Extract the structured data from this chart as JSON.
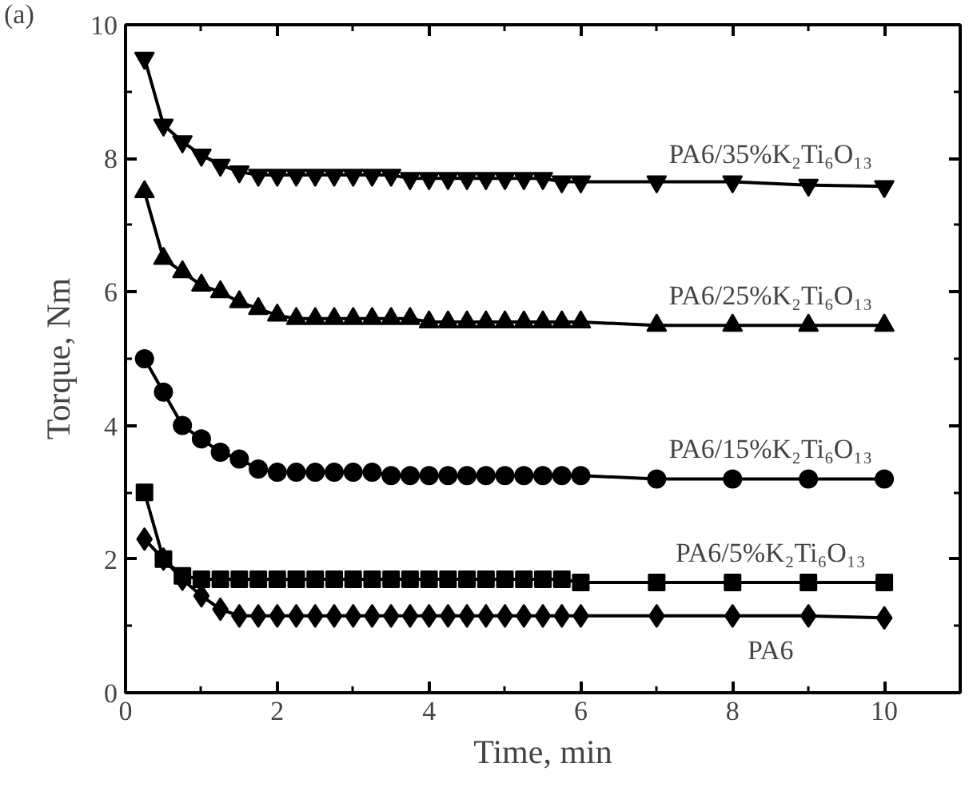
{
  "chart_data": {
    "type": "line",
    "xlabel": "Time, min",
    "ylabel": "Torque, Nm",
    "x": [
      0.25,
      0.5,
      0.75,
      1.0,
      1.25,
      1.5,
      1.75,
      2.0,
      2.25,
      2.5,
      2.75,
      3.0,
      3.25,
      3.5,
      3.75,
      4.0,
      4.25,
      4.5,
      4.75,
      5.0,
      5.25,
      5.5,
      5.75,
      6.0,
      7,
      8,
      9,
      10
    ],
    "series": [
      {
        "name": "PA6/35%K₂Ti₆O₁₃",
        "color": "#000000",
        "marker": "triangle_down",
        "values": [
          9.5,
          8.5,
          8.25,
          8.05,
          7.9,
          7.8,
          7.75,
          7.75,
          7.75,
          7.75,
          7.75,
          7.75,
          7.75,
          7.75,
          7.7,
          7.7,
          7.7,
          7.7,
          7.7,
          7.7,
          7.7,
          7.7,
          7.65,
          7.65,
          7.65,
          7.65,
          7.6,
          7.58
        ]
      },
      {
        "name": "PA6/25%K₂Ti₆O₁₃",
        "color": "#000000",
        "marker": "triangle",
        "values": [
          7.5,
          6.5,
          6.3,
          6.1,
          6.0,
          5.85,
          5.75,
          5.65,
          5.6,
          5.6,
          5.6,
          5.6,
          5.6,
          5.6,
          5.6,
          5.55,
          5.55,
          5.55,
          5.55,
          5.55,
          5.55,
          5.55,
          5.55,
          5.55,
          5.5,
          5.5,
          5.5,
          5.5
        ]
      },
      {
        "name": "PA6/15%K₂Ti₆O₁₃",
        "color": "#000000",
        "marker": "circle",
        "values": [
          5.0,
          4.5,
          4.0,
          3.8,
          3.6,
          3.5,
          3.35,
          3.3,
          3.3,
          3.3,
          3.3,
          3.3,
          3.3,
          3.25,
          3.25,
          3.25,
          3.25,
          3.25,
          3.25,
          3.25,
          3.25,
          3.25,
          3.25,
          3.25,
          3.2,
          3.2,
          3.2,
          3.2
        ]
      },
      {
        "name": "PA6/5%K₂Ti₆O₁₃",
        "color": "#000000",
        "marker": "square",
        "values": [
          3.0,
          2.0,
          1.75,
          1.7,
          1.7,
          1.7,
          1.7,
          1.7,
          1.7,
          1.7,
          1.7,
          1.7,
          1.7,
          1.7,
          1.7,
          1.7,
          1.7,
          1.7,
          1.7,
          1.7,
          1.7,
          1.7,
          1.7,
          1.65,
          1.65,
          1.65,
          1.65,
          1.65
        ]
      },
      {
        "name": "PA6",
        "color": "#000000",
        "marker": "diamond",
        "values": [
          2.3,
          2.0,
          1.7,
          1.45,
          1.25,
          1.15,
          1.15,
          1.15,
          1.15,
          1.15,
          1.15,
          1.15,
          1.15,
          1.15,
          1.15,
          1.15,
          1.15,
          1.15,
          1.15,
          1.15,
          1.15,
          1.15,
          1.15,
          1.15,
          1.15,
          1.15,
          1.15,
          1.12
        ]
      }
    ],
    "xlim": [
      0,
      11
    ],
    "xticks": [
      0,
      2,
      4,
      6,
      8,
      10
    ],
    "ylim": [
      0,
      10
    ],
    "yticks": [
      0,
      2,
      4,
      6,
      8,
      10
    ],
    "grid": false,
    "legend": false,
    "line_style": "solid",
    "annotations": [
      "(a)"
    ]
  }
}
